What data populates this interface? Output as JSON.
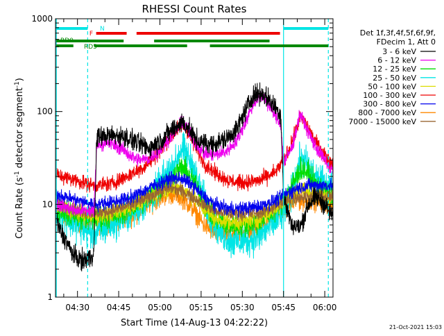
{
  "chart_data": {
    "type": "line",
    "title": "RHESSI Count Rates",
    "xlabel": "Start Time (14-Aug-13 04:22:22)",
    "ylabel_main": "Count Rate (s",
    "ylabel_exp1": "-1",
    "ylabel_mid": " detector segment",
    "ylabel_exp2": "-1",
    "ylabel_end": ")",
    "x_range_min": [
      262,
      363
    ],
    "x_ticks": [
      {
        "min": 270,
        "label": "04:30"
      },
      {
        "min": 285,
        "label": "04:45"
      },
      {
        "min": 300,
        "label": "05:00"
      },
      {
        "min": 315,
        "label": "05:15"
      },
      {
        "min": 330,
        "label": "05:30"
      },
      {
        "min": 345,
        "label": "05:45"
      },
      {
        "min": 360,
        "label": "06:00"
      }
    ],
    "y_scale": "log",
    "y_range": [
      1,
      1000
    ],
    "y_ticks": [
      {
        "value": 1,
        "label": "1"
      },
      {
        "value": 10,
        "label": "10"
      },
      {
        "value": 100,
        "label": "100"
      },
      {
        "value": 1000,
        "label": "1000"
      }
    ],
    "grid": false,
    "legend": {
      "position": "right",
      "header": [
        "Det 1f,3f,4f,5f,6f,9f,",
        "FDecim 1, Att 0"
      ],
      "entries": [
        {
          "label": "3 - 6 keV",
          "color": "#000000"
        },
        {
          "label": "6 - 12 keV",
          "color": "#ee00ee"
        },
        {
          "label": "12 - 25 keV",
          "color": "#00dd00"
        },
        {
          "label": "25 - 50 keV",
          "color": "#00e5e5"
        },
        {
          "label": "50 - 100 keV",
          "color": "#dddd00"
        },
        {
          "label": "100 - 300 keV",
          "color": "#ee0000"
        },
        {
          "label": "300 - 800 keV",
          "color": "#0000ee"
        },
        {
          "label": "800 - 7000 keV",
          "color": "#ff8800"
        },
        {
          "label": "7000 - 15000 keV",
          "color": "#996633"
        }
      ]
    },
    "series": [
      {
        "color": "#ff8800",
        "noise": 0.12,
        "points": [
          [
            262,
            8
          ],
          [
            270,
            6.5
          ],
          [
            276,
            6
          ],
          [
            282,
            6.5
          ],
          [
            290,
            7.5
          ],
          [
            296,
            10
          ],
          [
            300,
            12
          ],
          [
            304,
            13
          ],
          [
            308,
            12
          ],
          [
            312,
            9
          ],
          [
            316,
            6
          ],
          [
            320,
            5
          ],
          [
            325,
            4.8
          ],
          [
            330,
            5
          ],
          [
            336,
            5.5
          ],
          [
            342,
            8
          ],
          [
            346,
            9.5
          ],
          [
            350,
            11
          ],
          [
            354,
            11
          ],
          [
            358,
            11
          ],
          [
            362,
            10
          ]
        ]
      },
      {
        "color": "#00e5e5",
        "noise": 0.2,
        "points": [
          [
            262,
            9
          ],
          [
            268,
            6.5
          ],
          [
            274,
            5
          ],
          [
            278,
            5
          ],
          [
            282,
            6
          ],
          [
            288,
            7.5
          ],
          [
            294,
            10
          ],
          [
            298,
            13
          ],
          [
            302,
            20
          ],
          [
            306,
            28
          ],
          [
            307,
            37
          ],
          [
            308,
            39
          ],
          [
            309,
            37
          ],
          [
            312,
            26
          ],
          [
            314,
            16
          ],
          [
            318,
            8
          ],
          [
            322,
            5
          ],
          [
            326,
            4
          ],
          [
            330,
            4
          ],
          [
            336,
            4.5
          ],
          [
            342,
            6.5
          ],
          [
            346,
            9
          ],
          [
            349,
            17
          ],
          [
            351,
            30
          ],
          [
            353,
            28
          ],
          [
            356,
            20
          ],
          [
            360,
            16
          ],
          [
            362,
            15
          ]
        ]
      },
      {
        "color": "#00dd00",
        "noise": 0.14,
        "points": [
          [
            262,
            9
          ],
          [
            270,
            7.5
          ],
          [
            276,
            7
          ],
          [
            282,
            7.5
          ],
          [
            288,
            8.5
          ],
          [
            294,
            11
          ],
          [
            300,
            15
          ],
          [
            304,
            18
          ],
          [
            306,
            22
          ],
          [
            308,
            25
          ],
          [
            310,
            22
          ],
          [
            313,
            16
          ],
          [
            316,
            10
          ],
          [
            320,
            7
          ],
          [
            325,
            6
          ],
          [
            330,
            6
          ],
          [
            336,
            6.5
          ],
          [
            342,
            9
          ],
          [
            346,
            12
          ],
          [
            349,
            18
          ],
          [
            351,
            24
          ],
          [
            353,
            23
          ],
          [
            356,
            17
          ],
          [
            360,
            14
          ],
          [
            362,
            13
          ]
        ]
      },
      {
        "color": "#dddd00",
        "noise": 0.1,
        "points": [
          [
            262,
            10
          ],
          [
            270,
            8
          ],
          [
            276,
            7.5
          ],
          [
            282,
            8
          ],
          [
            288,
            9
          ],
          [
            294,
            11
          ],
          [
            300,
            14
          ],
          [
            304,
            15
          ],
          [
            308,
            15
          ],
          [
            312,
            12
          ],
          [
            316,
            9
          ],
          [
            320,
            7
          ],
          [
            325,
            6.5
          ],
          [
            330,
            6.5
          ],
          [
            336,
            7
          ],
          [
            342,
            9
          ],
          [
            346,
            11
          ],
          [
            349,
            13
          ],
          [
            351,
            15
          ],
          [
            354,
            13
          ],
          [
            358,
            12
          ],
          [
            362,
            12
          ]
        ]
      },
      {
        "color": "#996633",
        "noise": 0.08,
        "points": [
          [
            262,
            10.5
          ],
          [
            270,
            8.5
          ],
          [
            276,
            8
          ],
          [
            282,
            8.5
          ],
          [
            290,
            10
          ],
          [
            296,
            12
          ],
          [
            300,
            14
          ],
          [
            304,
            15
          ],
          [
            308,
            14
          ],
          [
            312,
            12
          ],
          [
            316,
            10
          ],
          [
            320,
            8.5
          ],
          [
            325,
            8
          ],
          [
            330,
            8
          ],
          [
            336,
            8
          ],
          [
            342,
            9.5
          ],
          [
            346,
            11
          ],
          [
            350,
            12
          ],
          [
            354,
            12
          ],
          [
            358,
            12
          ],
          [
            362,
            12
          ]
        ]
      },
      {
        "color": "#0000ee",
        "noise": 0.08,
        "points": [
          [
            262,
            13
          ],
          [
            270,
            11
          ],
          [
            276,
            10
          ],
          [
            282,
            10.5
          ],
          [
            290,
            12
          ],
          [
            296,
            15
          ],
          [
            300,
            17
          ],
          [
            304,
            19
          ],
          [
            308,
            19
          ],
          [
            312,
            16
          ],
          [
            316,
            12
          ],
          [
            320,
            10
          ],
          [
            325,
            9
          ],
          [
            330,
            9
          ],
          [
            336,
            9.5
          ],
          [
            342,
            11
          ],
          [
            346,
            13
          ],
          [
            350,
            15
          ],
          [
            354,
            16
          ],
          [
            358,
            16
          ],
          [
            362,
            16
          ]
        ]
      },
      {
        "color": "#ee0000",
        "noise": 0.09,
        "points": [
          [
            262,
            21
          ],
          [
            270,
            18
          ],
          [
            276,
            16
          ],
          [
            282,
            16.5
          ],
          [
            288,
            20
          ],
          [
            294,
            25
          ],
          [
            298,
            32
          ],
          [
            302,
            45
          ],
          [
            306,
            62
          ],
          [
            308,
            72
          ],
          [
            310,
            62
          ],
          [
            313,
            42
          ],
          [
            316,
            28
          ],
          [
            320,
            22
          ],
          [
            325,
            18
          ],
          [
            330,
            17
          ],
          [
            336,
            18
          ],
          [
            342,
            22
          ],
          [
            346,
            33
          ],
          [
            349,
            55
          ],
          [
            351,
            88
          ],
          [
            353,
            75
          ],
          [
            356,
            50
          ],
          [
            359,
            38
          ],
          [
            362,
            28
          ]
        ]
      },
      {
        "color": "#ee00ee",
        "noise": 0.08,
        "points": [
          [
            262,
            10
          ],
          [
            270,
            8.5
          ],
          [
            276,
            8.5
          ],
          [
            277,
            45
          ],
          [
            282,
            45
          ],
          [
            286,
            40
          ],
          [
            289,
            34
          ],
          [
            292,
            30
          ],
          [
            296,
            31
          ],
          [
            300,
            38
          ],
          [
            304,
            55
          ],
          [
            307,
            70
          ],
          [
            308,
            80
          ],
          [
            310,
            65
          ],
          [
            313,
            45
          ],
          [
            316,
            35
          ],
          [
            320,
            34
          ],
          [
            324,
            37
          ],
          [
            328,
            48
          ],
          [
            331,
            75
          ],
          [
            334,
            120
          ],
          [
            336,
            145
          ],
          [
            338,
            140
          ],
          [
            341,
            100
          ],
          [
            343,
            80
          ],
          [
            344,
            72
          ],
          [
            345,
            28
          ],
          [
            348,
            40
          ],
          [
            351,
            95
          ],
          [
            354,
            60
          ],
          [
            357,
            40
          ],
          [
            360,
            30
          ],
          [
            362,
            24
          ]
        ]
      },
      {
        "color": "#000000",
        "noise": 0.12,
        "points": [
          [
            262,
            7
          ],
          [
            264,
            5
          ],
          [
            266,
            4
          ],
          [
            268,
            3
          ],
          [
            270,
            2.6
          ],
          [
            272,
            2.5
          ],
          [
            275,
            2.7
          ],
          [
            276,
            3.2
          ],
          [
            277,
            52
          ],
          [
            280,
            55
          ],
          [
            284,
            55
          ],
          [
            288,
            52
          ],
          [
            292,
            46
          ],
          [
            296,
            40
          ],
          [
            300,
            48
          ],
          [
            304,
            62
          ],
          [
            307,
            72
          ],
          [
            308,
            78
          ],
          [
            310,
            68
          ],
          [
            313,
            50
          ],
          [
            316,
            45
          ],
          [
            320,
            45
          ],
          [
            324,
            50
          ],
          [
            328,
            65
          ],
          [
            331,
            100
          ],
          [
            334,
            150
          ],
          [
            336,
            158
          ],
          [
            338,
            152
          ],
          [
            341,
            120
          ],
          [
            344,
            95
          ],
          [
            345,
            12
          ],
          [
            348,
            6
          ],
          [
            351,
            5.5
          ],
          [
            354,
            10
          ],
          [
            357,
            12
          ],
          [
            360,
            10
          ],
          [
            362,
            8
          ]
        ]
      }
    ],
    "vlines": [
      {
        "min": 262.3,
        "color": "#00e5e5",
        "style": "solid"
      },
      {
        "min": 273.7,
        "color": "#00e5e5",
        "style": "dashed"
      },
      {
        "min": 345.0,
        "color": "#00e5e5",
        "style": "solid"
      },
      {
        "min": 361.3,
        "color": "#00e5e5",
        "style": "dashed"
      }
    ],
    "flag_bars": [
      {
        "label": "N",
        "color": "#00e5e5",
        "segments": [
          [
            262.3,
            273.7
          ],
          [
            345.0,
            361.3
          ]
        ]
      },
      {
        "label": "F",
        "color": "#ee0000",
        "segments": [
          [
            276.8,
            287.9
          ],
          [
            291.5,
            343.7
          ]
        ]
      },
      {
        "label": "RD0",
        "color": "#008800",
        "segments": [
          [
            262.3,
            286.8
          ],
          [
            297.9,
            339.9
          ]
        ]
      },
      {
        "label": "RD5",
        "color": "#008800",
        "segments": [
          [
            262.3,
            268.5
          ],
          [
            276.1,
            289.2
          ],
          [
            287.5,
            309.9
          ],
          [
            318.2,
            361.3
          ]
        ]
      }
    ],
    "timestamp": "21-Oct-2021 15:03"
  }
}
